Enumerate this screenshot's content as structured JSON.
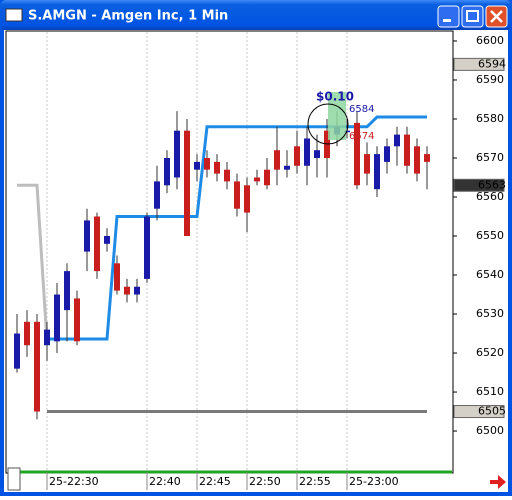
{
  "window": {
    "title": "S.AMGN - Amgen Inc, 1 Min"
  },
  "chart_data": {
    "type": "candlestick",
    "categories": [
      null,
      null,
      null,
      "25-22:30",
      null,
      null,
      null,
      null,
      null,
      null,
      null,
      null,
      null,
      "22:40",
      null,
      null,
      null,
      null,
      "22:45",
      null,
      null,
      null,
      null,
      "22:50",
      null,
      null,
      null,
      null,
      "22:55",
      null,
      null,
      null,
      null,
      "25-23:00",
      null,
      null,
      null,
      null,
      null,
      null,
      null,
      null
    ],
    "open": [
      6516,
      6528,
      6528,
      6522,
      6523,
      6531,
      6534,
      6546,
      6555,
      6548,
      6543,
      6537,
      6535,
      6539,
      6557,
      6563,
      6565,
      6577,
      6567,
      6570,
      6569,
      6567,
      6564,
      6563,
      6565,
      6567,
      6572,
      6567,
      6573,
      6568,
      6570,
      6577,
      6576,
      6577,
      6579,
      6571,
      6562,
      6569,
      6573,
      6576,
      6573,
      6571
    ],
    "high": [
      6530,
      6531,
      6530,
      6528,
      6538,
      6543,
      6536,
      6557,
      6556,
      6552,
      6545,
      6539,
      6539,
      6556,
      6568,
      6572,
      6582,
      6580,
      6571,
      6572,
      6571,
      6569,
      6566,
      6565,
      6567,
      6570,
      6578,
      6572,
      6577,
      6578,
      6576,
      6580,
      6582,
      6580,
      6582,
      6574,
      6573,
      6575,
      6578,
      6578,
      6575,
      6573
    ],
    "low": [
      6515,
      6519,
      6503,
      6518,
      6520,
      6523,
      6522,
      6541,
      6539,
      6546,
      6535,
      6533,
      6533,
      6538,
      6554,
      6561,
      6562,
      6550,
      6564,
      6565,
      6564,
      6562,
      6555,
      6551,
      6563,
      6562,
      6563,
      6565,
      6566,
      6563,
      6565,
      6565,
      6573,
      6575,
      6562,
      6563,
      6560,
      6566,
      6568,
      6566,
      6564,
      6562
    ],
    "close": [
      6525,
      6522,
      6505,
      6526,
      6535,
      6541,
      6523,
      6554,
      6541,
      6550,
      6536,
      6535,
      6537,
      6555,
      6564,
      6570,
      6577,
      6550,
      6569,
      6567,
      6566,
      6564,
      6557,
      6556,
      6564,
      6563,
      6567,
      6568,
      6568,
      6575,
      6572,
      6570,
      6578,
      6577,
      6563,
      6566,
      6571,
      6573,
      6576,
      6568,
      6566,
      6569
    ],
    "up_color": "#1a1aa8",
    "down_color": "#c81e1e",
    "series": [
      {
        "color": "#bdbdbd",
        "values": [
          6563,
          6563,
          6563,
          6523,
          null,
          null,
          null,
          null,
          null,
          null,
          null,
          null,
          null,
          null,
          null,
          null,
          null,
          null,
          null,
          null,
          null,
          null,
          null,
          null,
          null,
          null,
          null,
          null,
          null,
          null,
          null,
          null,
          null,
          null,
          null,
          null,
          null,
          null,
          null,
          null,
          null,
          null
        ]
      },
      {
        "color": "#1e8ce6",
        "values": [
          null,
          null,
          null,
          6523.6,
          6523.6,
          6523.6,
          6523.6,
          6523.6,
          6523.6,
          6523.6,
          6555,
          6555,
          6555,
          6555,
          6555,
          6555,
          6555,
          6555,
          6555,
          6578,
          6578,
          6578,
          6578,
          6578,
          6578,
          6578,
          6578,
          6578,
          6578,
          6578,
          6578,
          6578,
          6578,
          6578,
          6578,
          6578,
          6580.5,
          6580.5,
          6580.5,
          6580.5,
          6580.5,
          6580.5
        ]
      },
      {
        "color": "#7a7a7a",
        "values": [
          null,
          null,
          null,
          6505,
          6505,
          6505,
          6505,
          6505,
          6505,
          6505,
          6505,
          6505,
          6505,
          6505,
          6505,
          6505,
          6505,
          6505,
          6505,
          6505,
          6505,
          6505,
          6505,
          6505,
          6505,
          6505,
          6505,
          6505,
          6505,
          6505,
          6505,
          6505,
          6505,
          6505,
          6505,
          6505,
          6505,
          6505,
          6505,
          6505,
          6505,
          6505
        ]
      }
    ],
    "ylim": [
      6489.5,
      6602.3
    ],
    "yticks": [
      6500,
      6510,
      6520,
      6530,
      6540,
      6550,
      6560,
      6570,
      6580,
      6590,
      6600
    ],
    "price_markers": [
      6594,
      6563,
      6505
    ],
    "annotations": [
      "$0.10",
      "6584",
      "6574"
    ],
    "xgrid": true
  }
}
